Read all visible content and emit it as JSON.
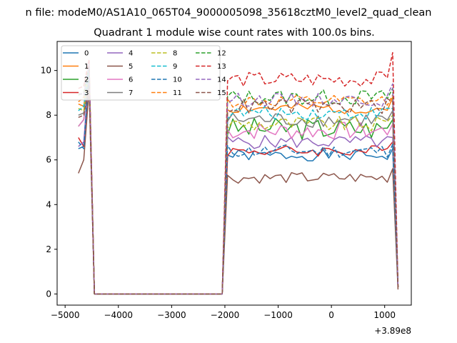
{
  "figure": {
    "suptitle": "n file: modeM0/AS1A10_065T04_9000005098_35618cztM0_level2_quad_clean",
    "title": "Quadrant 1 module wise count rates with 100.0s bins."
  },
  "chart_data": {
    "type": "line",
    "title": "Quadrant 1 module wise count rates with 100.0s bins.",
    "xlabel": "",
    "ylabel": "",
    "x_offset_label": "+3.89e8",
    "xlim": [
      -5150,
      1500
    ],
    "ylim": [
      -0.5,
      11.3
    ],
    "x_ticks": [
      -5000,
      -4000,
      -3000,
      -2000,
      -1000,
      0,
      1000
    ],
    "x_tick_labels": [
      "−5000",
      "−4000",
      "−3000",
      "−2000",
      "−1000",
      "0",
      "1000"
    ],
    "y_ticks": [
      0,
      2,
      4,
      6,
      8,
      10
    ],
    "y_tick_labels": [
      "0",
      "2",
      "4",
      "6",
      "8",
      "10"
    ],
    "grid": false,
    "legend": {
      "placement": "top-left",
      "columns": 4
    },
    "x_segments": [
      {
        "start": -4750,
        "step": 100,
        "count": 27
      },
      {
        "start": -2050,
        "step": 100,
        "count": 34
      }
    ],
    "series": [
      {
        "name": "0",
        "color": "#1f77b4",
        "dash": "solid",
        "base": 6.2,
        "amp": 0.25,
        "seed": 1,
        "pre": [
          6.5,
          6.6,
          10.2
        ],
        "edge": [
          6.5,
          0.3
        ]
      },
      {
        "name": "1",
        "color": "#ff7f0e",
        "dash": "solid",
        "base": 8.3,
        "amp": 0.25,
        "seed": 2,
        "pre": [
          8.5,
          8.4,
          10.3
        ],
        "edge": [
          8.8,
          0.3
        ]
      },
      {
        "name": "2",
        "color": "#2ca02c",
        "dash": "solid",
        "base": 7.4,
        "amp": 0.5,
        "seed": 3,
        "pre": [
          7.5,
          7.8,
          10.0
        ],
        "edge": [
          7.8,
          0.3
        ]
      },
      {
        "name": "3",
        "color": "#d62728",
        "dash": "solid",
        "base": 6.4,
        "amp": 0.25,
        "seed": 4,
        "pre": [
          7.0,
          6.6,
          9.8
        ],
        "edge": [
          6.8,
          0.3
        ]
      },
      {
        "name": "4",
        "color": "#9467bd",
        "dash": "solid",
        "base": 6.8,
        "amp": 0.3,
        "seed": 5,
        "pre": [
          6.6,
          6.8,
          9.9
        ],
        "edge": [
          7.0,
          0.3
        ]
      },
      {
        "name": "5",
        "color": "#8c564b",
        "dash": "solid",
        "base": 5.2,
        "amp": 0.25,
        "seed": 6,
        "pre": [
          5.4,
          6.0,
          9.2
        ],
        "edge": [
          5.6,
          0.2
        ]
      },
      {
        "name": "6",
        "color": "#e377c2",
        "dash": "solid",
        "base": 7.3,
        "amp": 0.4,
        "seed": 7,
        "pre": [
          7.5,
          7.8,
          10.1
        ],
        "edge": [
          7.6,
          0.3
        ]
      },
      {
        "name": "7",
        "color": "#7f7f7f",
        "dash": "solid",
        "base": 7.8,
        "amp": 0.35,
        "seed": 8,
        "pre": [
          8.0,
          8.1,
          10.0
        ],
        "edge": [
          8.2,
          0.3
        ]
      },
      {
        "name": "8",
        "color": "#bcbd22",
        "dash": "dashed",
        "base": 7.6,
        "amp": 0.35,
        "seed": 9,
        "pre": [
          8.3,
          8.2,
          10.1
        ],
        "edge": [
          8.0,
          0.3
        ]
      },
      {
        "name": "9",
        "color": "#17becf",
        "dash": "dashed",
        "base": 8.1,
        "amp": 0.3,
        "seed": 10,
        "pre": [
          8.2,
          8.4,
          10.2
        ],
        "edge": [
          8.3,
          0.3
        ]
      },
      {
        "name": "10",
        "color": "#1f77b4",
        "dash": "dashed",
        "base": 6.4,
        "amp": 0.3,
        "seed": 11,
        "pre": [
          6.8,
          6.5,
          10.0
        ],
        "edge": [
          6.7,
          0.3
        ]
      },
      {
        "name": "11",
        "color": "#ff7f0e",
        "dash": "dashed",
        "base": 8.6,
        "amp": 0.3,
        "seed": 12,
        "pre": [
          8.6,
          8.8,
          10.4
        ],
        "edge": [
          8.9,
          0.3
        ]
      },
      {
        "name": "12",
        "color": "#2ca02c",
        "dash": "dashed",
        "base": 8.8,
        "amp": 0.35,
        "seed": 13,
        "pre": [
          8.9,
          9.0,
          10.2
        ],
        "edge": [
          9.2,
          0.3
        ]
      },
      {
        "name": "13",
        "color": "#d62728",
        "dash": "dashed",
        "base": 9.6,
        "amp": 0.35,
        "seed": 14,
        "pre": [
          9.2,
          9.3,
          10.5
        ],
        "edge": [
          10.8,
          0.3
        ]
      },
      {
        "name": "14",
        "color": "#9467bd",
        "dash": "dashed",
        "base": 8.7,
        "amp": 0.3,
        "seed": 15,
        "pre": [
          9.0,
          8.9,
          10.3
        ],
        "edge": [
          9.4,
          0.3
        ]
      },
      {
        "name": "15",
        "color": "#8c564b",
        "dash": "dashed",
        "base": 8.4,
        "amp": 0.35,
        "seed": 16,
        "pre": [
          7.9,
          8.0,
          9.3
        ],
        "edge": [
          8.6,
          0.3
        ]
      }
    ]
  }
}
